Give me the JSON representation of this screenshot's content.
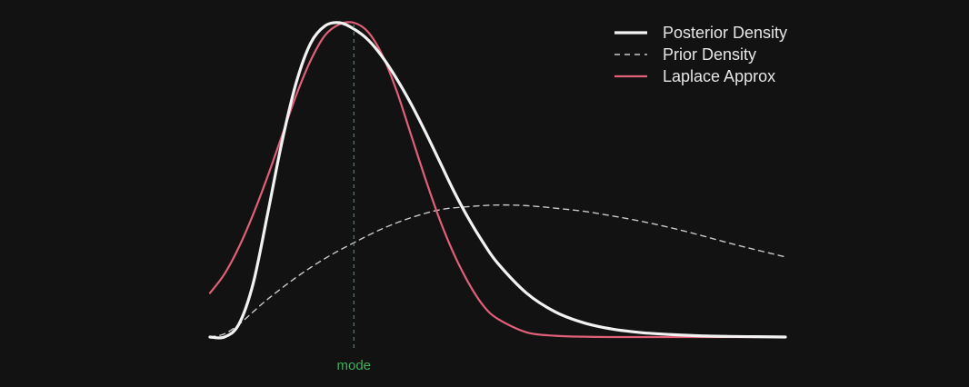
{
  "chart_data": {
    "type": "line",
    "title": "",
    "xlabel": "",
    "ylabel": "",
    "xlim": [
      0,
      10
    ],
    "ylim": [
      0,
      1
    ],
    "grid": false,
    "axes_visible": false,
    "legend_placement": "top-right",
    "mode_line": {
      "x": 2.5,
      "label": "mode",
      "color": "#3fae5a"
    },
    "series": [
      {
        "name": "Posterior Density",
        "color": "#f2f2f2",
        "style": "solid",
        "x": [
          0,
          0.25,
          0.5,
          0.75,
          1,
          1.25,
          1.5,
          1.75,
          2,
          2.25,
          2.5,
          2.75,
          3,
          3.25,
          3.5,
          3.75,
          4,
          4.25,
          4.5,
          4.75,
          5,
          5.5,
          6,
          6.5,
          7,
          7.5,
          8,
          8.5,
          9,
          9.5,
          10
        ],
        "y": [
          0,
          0.0,
          0.04,
          0.17,
          0.39,
          0.62,
          0.81,
          0.935,
          0.99,
          1.0,
          0.98,
          0.945,
          0.89,
          0.82,
          0.74,
          0.65,
          0.555,
          0.46,
          0.375,
          0.3,
          0.235,
          0.14,
          0.08,
          0.045,
          0.025,
          0.014,
          0.008,
          0.004,
          0.002,
          0.001,
          0.0
        ]
      },
      {
        "name": "Prior Density",
        "color": "#c8c8c8",
        "style": "dashed",
        "x": [
          0,
          0.25,
          0.5,
          0.75,
          1,
          1.5,
          2,
          2.5,
          3,
          3.5,
          4,
          4.5,
          5,
          5.5,
          6,
          6.5,
          7,
          7.5,
          8,
          8.5,
          9,
          9.5,
          10
        ],
        "y": [
          0.0,
          0.01,
          0.04,
          0.08,
          0.12,
          0.19,
          0.25,
          0.3,
          0.345,
          0.38,
          0.405,
          0.415,
          0.42,
          0.418,
          0.41,
          0.4,
          0.385,
          0.368,
          0.348,
          0.325,
          0.3,
          0.277,
          0.255
        ]
      },
      {
        "name": "Laplace Approx",
        "color": "#e0607a",
        "style": "solid",
        "x": [
          0,
          0.25,
          0.5,
          0.75,
          1,
          1.25,
          1.5,
          1.75,
          2,
          2.25,
          2.5,
          2.75,
          3,
          3.25,
          3.5,
          3.75,
          4,
          4.25,
          4.5,
          4.75,
          5,
          5.5,
          6,
          6.5,
          7,
          7.5,
          8,
          8.5,
          9,
          9.5,
          10
        ],
        "y": [
          0.14,
          0.2,
          0.285,
          0.39,
          0.51,
          0.64,
          0.77,
          0.88,
          0.96,
          0.995,
          1.0,
          0.97,
          0.895,
          0.78,
          0.64,
          0.5,
          0.37,
          0.26,
          0.17,
          0.1,
          0.058,
          0.015,
          0.004,
          0.001,
          0.0,
          0.0,
          0.0,
          0.0,
          0.0,
          0.0,
          0.0
        ]
      }
    ]
  }
}
